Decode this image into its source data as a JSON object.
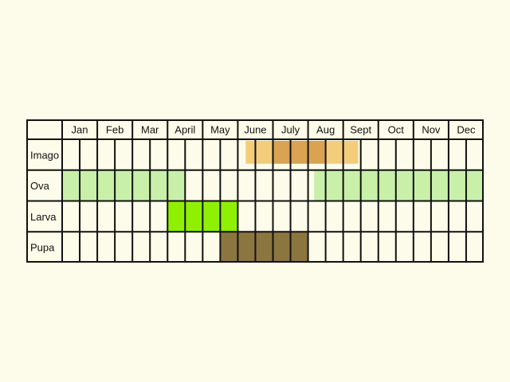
{
  "chart_data": {
    "type": "table",
    "months": [
      "Jan",
      "Feb",
      "Mar",
      "April",
      "May",
      "June",
      "July",
      "Aug",
      "Sept",
      "Oct",
      "Nov",
      "Dec"
    ],
    "periods_per_month": 2,
    "stages": [
      {
        "name": "Imago",
        "cells": [
          0,
          0,
          0,
          0,
          0,
          0,
          0,
          0,
          0,
          0,
          1,
          1,
          2,
          2,
          2,
          1,
          1,
          0,
          0,
          0,
          0,
          0,
          0,
          0
        ]
      },
      {
        "name": "Ova",
        "cells": [
          1,
          1,
          1,
          1,
          1,
          1,
          1,
          0,
          0,
          0,
          0,
          0,
          0,
          0,
          1,
          1,
          1,
          1,
          1,
          1,
          1,
          1,
          1,
          1
        ]
      },
      {
        "name": "Larva",
        "cells": [
          0,
          0,
          0,
          0,
          0,
          0,
          1,
          1,
          1,
          1,
          0,
          0,
          0,
          0,
          0,
          0,
          0,
          0,
          0,
          0,
          0,
          0,
          0,
          0
        ]
      },
      {
        "name": "Pupa",
        "cells": [
          0,
          0,
          0,
          0,
          0,
          0,
          0,
          0,
          0,
          1,
          1,
          1,
          1,
          1,
          0,
          0,
          0,
          0,
          0,
          0,
          0,
          0,
          0,
          0
        ]
      }
    ]
  },
  "colors": {
    "background": "#fdfbe9",
    "grid": "#111111",
    "imago_light": "#f3cd7a",
    "imago_dark": "#d9a352",
    "ova": "#c8f0a8",
    "larva": "#8ff004",
    "pupa": "#8c7640"
  }
}
